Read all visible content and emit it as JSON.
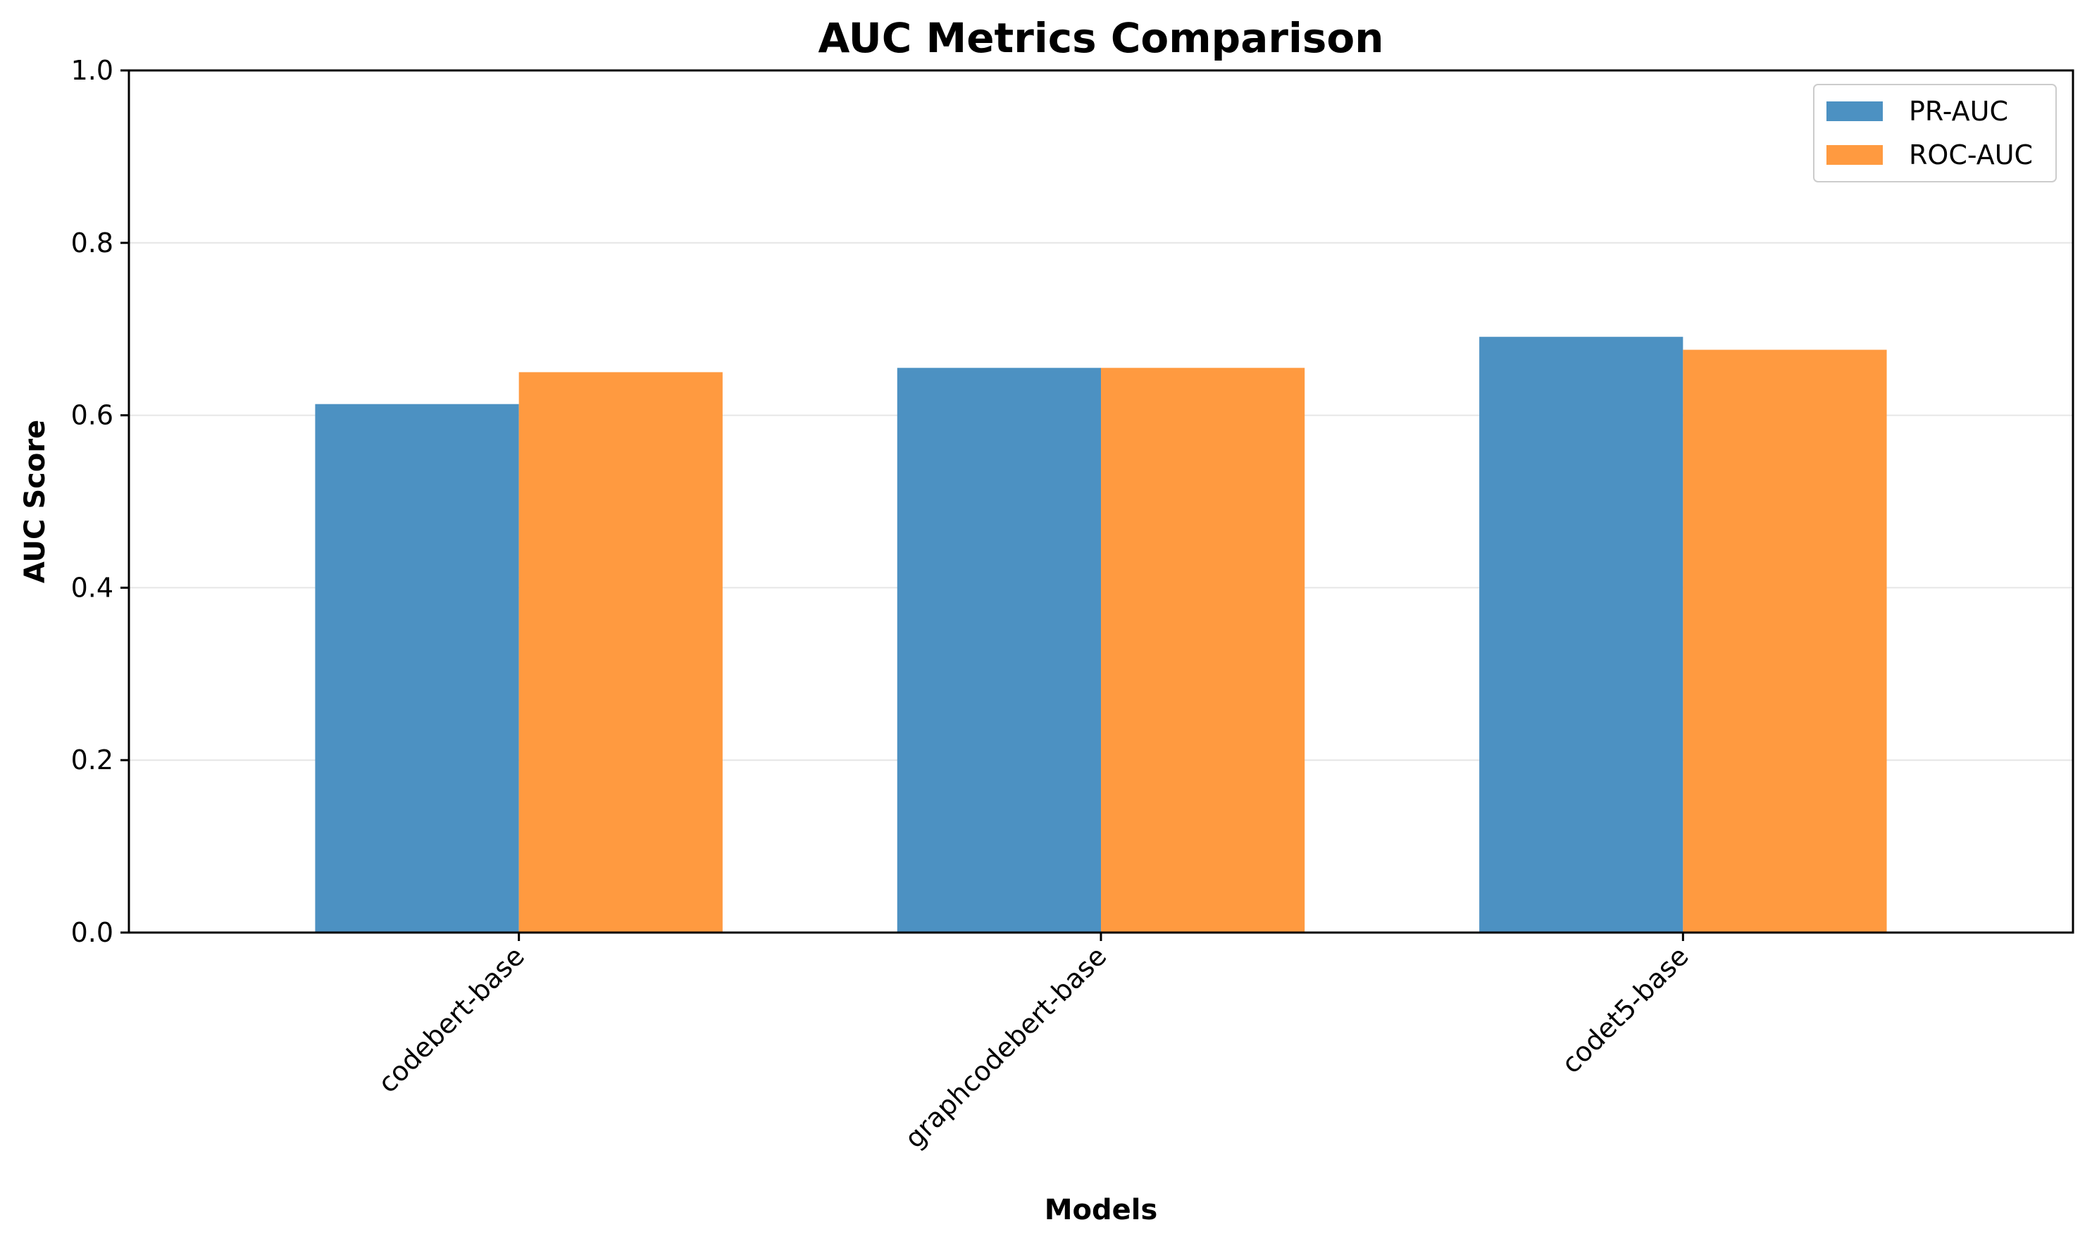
{
  "chart_data": {
    "type": "bar",
    "title": "AUC Metrics Comparison",
    "xlabel": "Models",
    "ylabel": "AUC Score",
    "categories": [
      "codebert-base",
      "graphcodebert-base",
      "codet5-base"
    ],
    "series": [
      {
        "name": "PR-AUC",
        "values": [
          0.613,
          0.655,
          0.691
        ],
        "color": "#4c91c2"
      },
      {
        "name": "ROC-AUC",
        "values": [
          0.65,
          0.655,
          0.676
        ],
        "color": "#ff9a40"
      }
    ],
    "ylim": [
      0.0,
      1.0
    ],
    "yticks": [
      "0.0",
      "0.2",
      "0.4",
      "0.6",
      "0.8",
      "1.0"
    ],
    "grid": "y",
    "legend_position": "top-right"
  }
}
